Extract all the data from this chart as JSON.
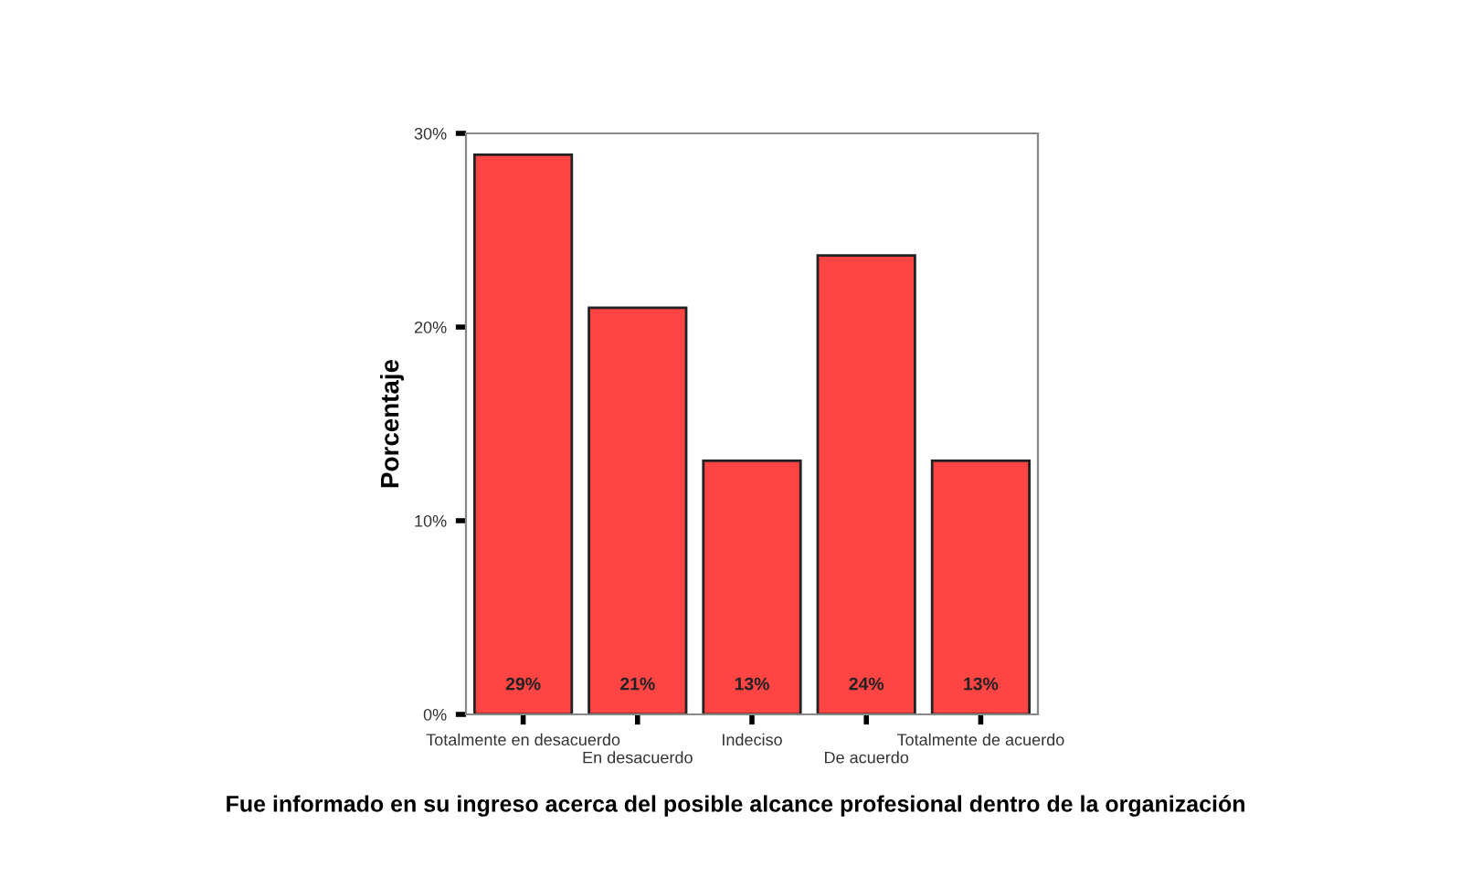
{
  "chart_data": {
    "type": "bar",
    "xlabel": "Fue informado en su ingreso acerca del posible alcance profesional dentro de la organización",
    "ylabel": "Porcentaje",
    "categories": [
      "Totalmente en desacuerdo",
      "En desacuerdo",
      "Indeciso",
      "De acuerdo",
      "Totalmente de acuerdo"
    ],
    "values": [
      28.9,
      21.0,
      13.1,
      23.7,
      13.1
    ],
    "value_labels": [
      "29%",
      "21%",
      "13%",
      "24%",
      "13%"
    ],
    "color": "#ff4444",
    "ylim": [
      0,
      30
    ],
    "yticks": [
      {
        "value": 0,
        "label": "0%"
      },
      {
        "value": 10,
        "label": "10%"
      },
      {
        "value": 20,
        "label": "20%"
      },
      {
        "value": 30,
        "label": "30%"
      }
    ],
    "grid": false
  }
}
